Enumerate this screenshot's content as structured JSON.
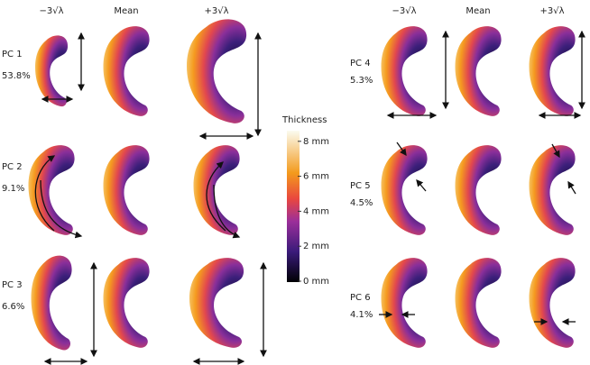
{
  "left_panel": {
    "column_headers": [
      "−3√λ",
      "Mean",
      "+3√λ"
    ],
    "rows": [
      {
        "pc": "PC 1",
        "variance": "53.8%"
      },
      {
        "pc": "PC 2",
        "variance": "9.1%"
      },
      {
        "pc": "PC 3",
        "variance": "6.6%"
      }
    ]
  },
  "right_panel": {
    "column_headers": [
      "−3√λ",
      "Mean",
      "+3√λ"
    ],
    "rows": [
      {
        "pc": "PC 4",
        "variance": "5.3%"
      },
      {
        "pc": "PC 5",
        "variance": "4.5%"
      },
      {
        "pc": "PC 6",
        "variance": "4.1%"
      }
    ]
  },
  "colorbar": {
    "title": "Thickness",
    "ticks": [
      {
        "value": 0,
        "label": "0 mm"
      },
      {
        "value": 2,
        "label": "2 mm"
      },
      {
        "value": 4,
        "label": "4 mm"
      },
      {
        "value": 6,
        "label": "6 mm"
      },
      {
        "value": 8,
        "label": "8 mm"
      }
    ]
  }
}
